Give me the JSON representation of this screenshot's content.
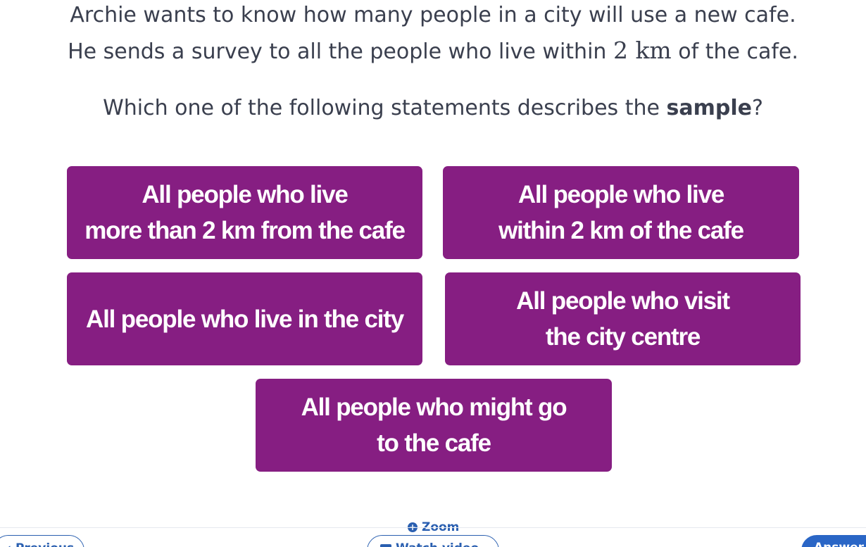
{
  "question": {
    "line1": "Archie wants to know how many people in a city will use a new cafe.",
    "line2_before": "He sends a survey to all the people who live within ",
    "line2_math": "2 km",
    "line2_after": " of the cafe.",
    "prompt_before": "Which one of the following statements describes the ",
    "prompt_bold": "sample",
    "prompt_after": "?"
  },
  "options": [
    {
      "line1": "All people who live",
      "line2": "more than 2 km from the cafe"
    },
    {
      "line1": "All people who live",
      "line2": "within 2 km of the cafe"
    },
    {
      "line1": "All people who live in the city",
      "line2": ""
    },
    {
      "line1": "All people who visit",
      "line2": "the city centre"
    },
    {
      "line1": "All people who might go",
      "line2": "to the cafe"
    }
  ],
  "footer": {
    "zoom_label": "Zoom",
    "previous_label": "Previous",
    "watch_video_label": "Watch video",
    "answer_label": "Answer"
  },
  "colors": {
    "option_bg": "#861e82",
    "accent": "#2a66c6"
  }
}
